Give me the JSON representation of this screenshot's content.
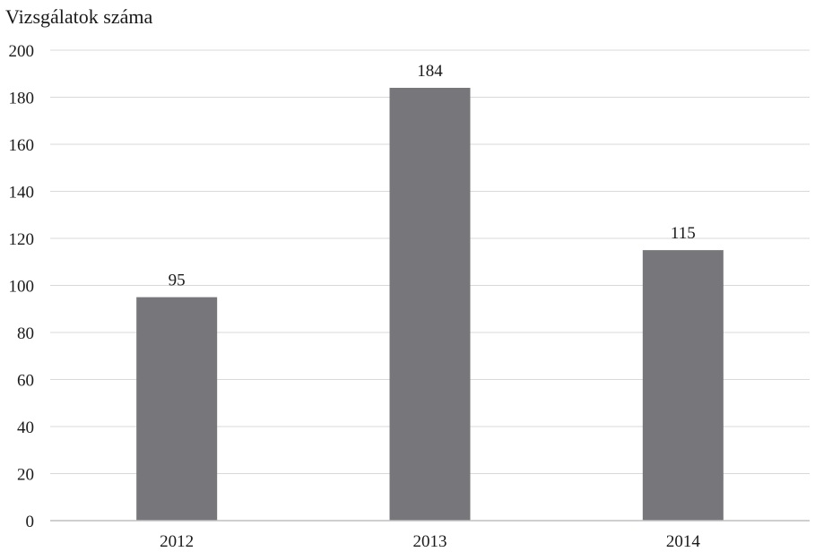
{
  "chart_data": {
    "type": "bar",
    "ylabel": "Vizsgálatok száma",
    "xlabel": "",
    "categories": [
      "2012",
      "2013",
      "2014"
    ],
    "values": [
      95,
      184,
      115
    ],
    "data_labels": [
      "95",
      "184",
      "115"
    ],
    "ylim": [
      0,
      200
    ],
    "yticks": [
      0,
      20,
      40,
      60,
      80,
      100,
      120,
      140,
      160,
      180,
      200
    ],
    "grid": true,
    "legend": "none",
    "colors": {
      "bar": "#77777b",
      "grid": "#d9d9d9",
      "axis": "#bfbfbf"
    }
  }
}
